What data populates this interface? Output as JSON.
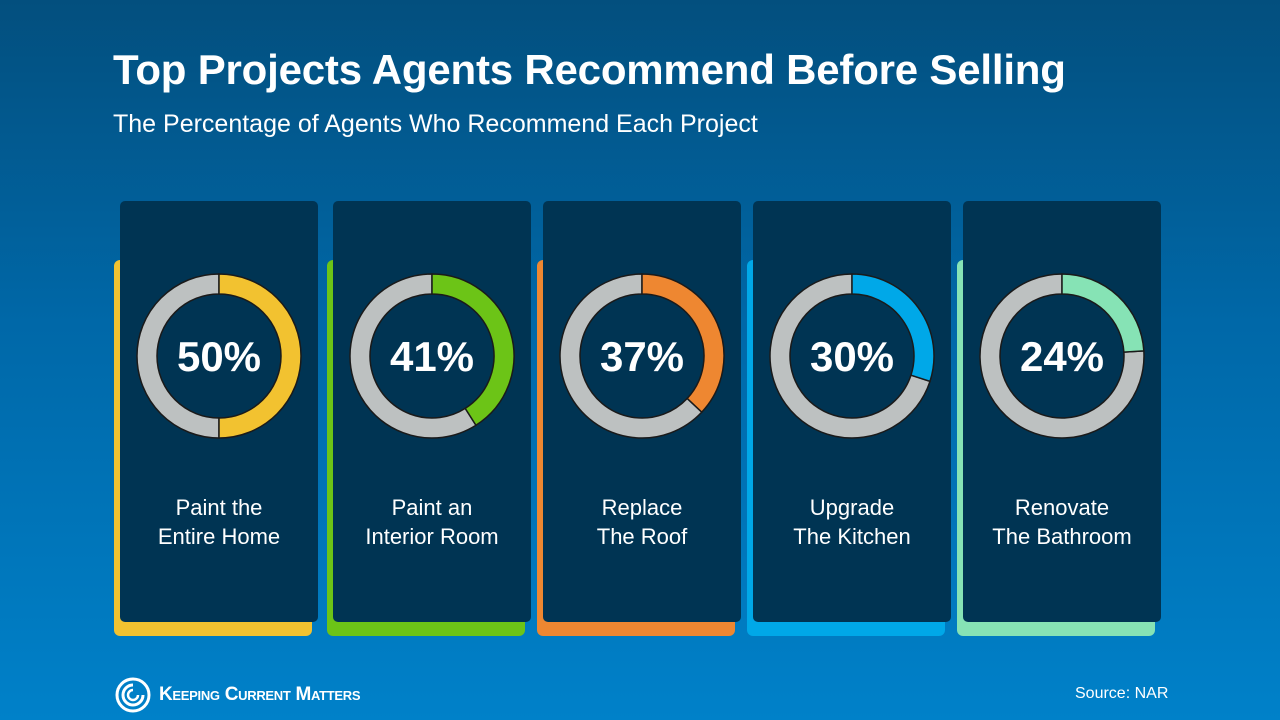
{
  "header": {
    "title": "Top Projects Agents Recommend Before Selling",
    "subtitle": "The Percentage of Agents Who Recommend Each Project"
  },
  "chart_data": {
    "type": "donut",
    "title": "Top Projects Agents Recommend Before Selling",
    "subtitle": "The Percentage of Agents Who Recommend Each Project",
    "categories": [
      "Paint the Entire Home",
      "Paint an Interior Room",
      "Replace The Roof",
      "Upgrade The Kitchen",
      "Renovate The Bathroom"
    ],
    "values": [
      50,
      41,
      37,
      30,
      24
    ],
    "items": [
      {
        "line1": "Paint the",
        "line2": "Entire Home",
        "value": 50,
        "value_label": "50%",
        "color": "#F2C230"
      },
      {
        "line1": "Paint an",
        "line2": "Interior Room",
        "value": 41,
        "value_label": "41%",
        "color": "#6CC417"
      },
      {
        "line1": "Replace",
        "line2": "The Roof",
        "value": 37,
        "value_label": "37%",
        "color": "#EE8731"
      },
      {
        "line1": "Upgrade",
        "line2": "The Kitchen",
        "value": 30,
        "value_label": "30%",
        "color": "#00A8E8"
      },
      {
        "line1": "Renovate",
        "line2": "The Bathroom",
        "value": 24,
        "value_label": "24%",
        "color": "#86E3B5"
      }
    ],
    "remainder_color": "#BDC1C1"
  },
  "footer": {
    "logo": "Keeping Current Matters",
    "source": "Source: NAR"
  }
}
